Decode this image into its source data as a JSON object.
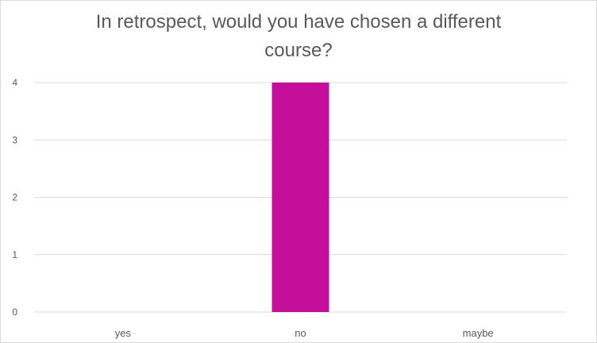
{
  "chart_data": {
    "type": "bar",
    "title_lines": [
      "In retrospect, would you have chosen a different",
      "course?"
    ],
    "categories": [
      "yes",
      "no",
      "maybe"
    ],
    "values": [
      0,
      4,
      0
    ],
    "ylim": [
      0,
      4
    ],
    "yticks": [
      0,
      1,
      2,
      3,
      4
    ],
    "grid": true,
    "legend": "none",
    "bar_color": "#c40f9b",
    "grid_color": "#d9d9d9",
    "text_color": "#595959"
  }
}
